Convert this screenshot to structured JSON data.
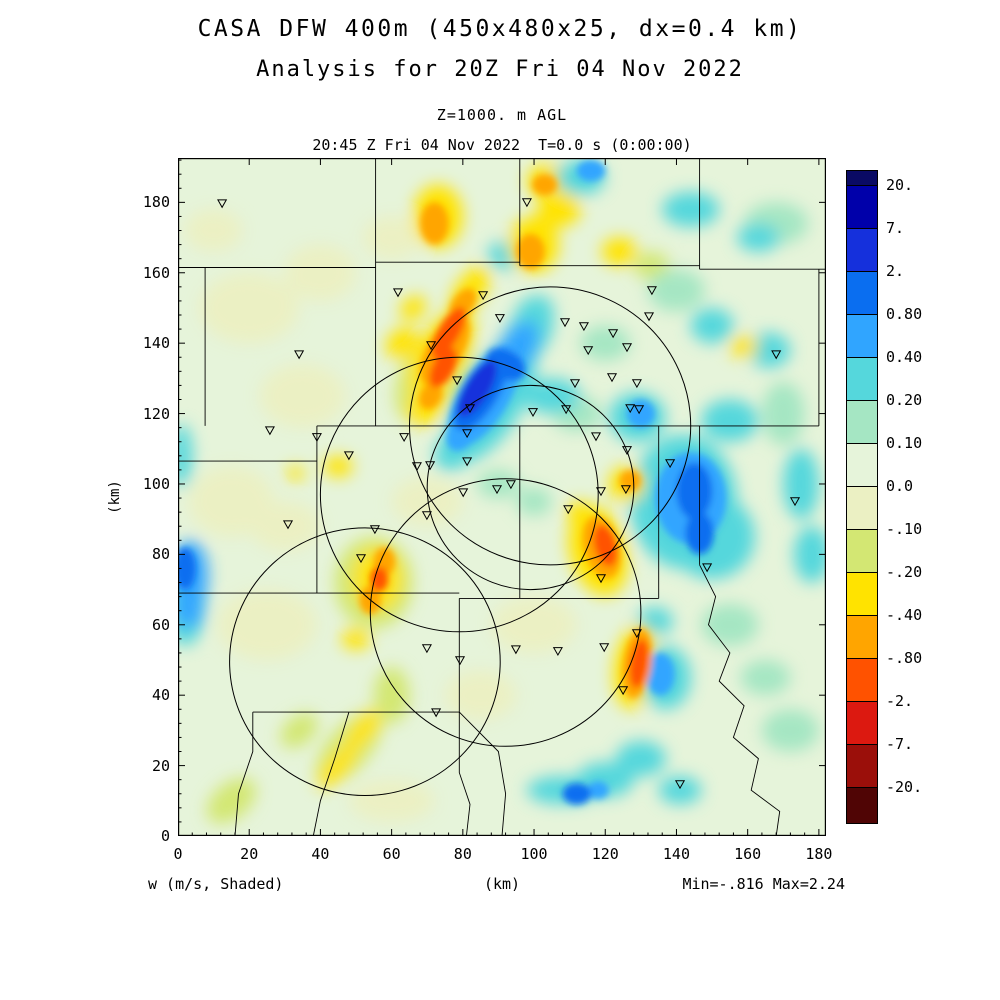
{
  "header": {
    "title": "CASA DFW 400m (450x480x25, dx=0.4 km)",
    "subtitle": "Analysis for 20Z Fri 04 Nov 2022",
    "level_label": "Z=1000. m AGL",
    "time_label": "20:45 Z Fri 04 Nov 2022  T=0.0 s (0:00:00)"
  },
  "footer": {
    "field_label": "w (m/s, Shaded)",
    "axis_unit_label": "(km)",
    "range_label": "Min=-.816 Max=2.24"
  },
  "axes": {
    "x_label": "(km)",
    "y_label": "(km)",
    "x_ticks": [
      0,
      20,
      40,
      60,
      80,
      100,
      120,
      140,
      160,
      180
    ],
    "y_ticks": [
      0,
      20,
      40,
      60,
      80,
      100,
      120,
      140,
      160,
      180
    ],
    "x_max": 182,
    "y_max": 192.6
  },
  "colorbar": {
    "labels": [
      "20.",
      "7.",
      "2.",
      "0.80",
      "0.40",
      "0.20",
      "0.10",
      "0.0",
      "-.10",
      "-.20",
      "-.40",
      "-.80",
      "-2.",
      "-7.",
      "-20."
    ],
    "thresholds": [
      20,
      7,
      2,
      0.8,
      0.4,
      0.2,
      0.1,
      0,
      -0.1,
      -0.2,
      -0.4,
      -0.8,
      -2,
      -7,
      -20
    ],
    "colors": [
      "#0A0A64",
      "#0000AA",
      "#1530DC",
      "#0A6EF0",
      "#30A5FF",
      "#55D7DC",
      "#A5E6C3",
      "#E6F4DA",
      "#EBF0C3",
      "#D3E773",
      "#FFE300",
      "#FFA500",
      "#FF5200",
      "#DC1910",
      "#9B0F0A",
      "#500505"
    ]
  },
  "chart_data": {
    "type": "heatmap",
    "field": "w",
    "units": "m/s",
    "shading": "vertical velocity, shaded by colorbar levels",
    "min": -0.816,
    "max": 2.24,
    "blobs": [
      [
        84,
        127,
        9,
        3.5,
        -59,
        2.2
      ],
      [
        92,
        134,
        4,
        6,
        -59,
        1.0
      ],
      [
        85,
        126,
        12,
        5,
        -59,
        1.0
      ],
      [
        86,
        125,
        16,
        7,
        -59,
        0.5
      ],
      [
        88,
        124,
        20,
        9,
        -59,
        0.3
      ],
      [
        95,
        138,
        9,
        5,
        -59,
        0.4
      ],
      [
        98,
        142,
        10,
        6,
        -55,
        0.2
      ],
      [
        80,
        115,
        6,
        4,
        -59,
        0.5
      ],
      [
        78,
        110,
        7,
        5,
        -50,
        0.25
      ],
      [
        100,
        148,
        6,
        5,
        -45,
        0.2
      ],
      [
        76,
        143,
        8,
        3,
        -60,
        -0.9
      ],
      [
        74.5,
        133,
        6,
        3,
        -62,
        -0.9
      ],
      [
        75,
        138,
        11,
        5,
        -60,
        -0.6
      ],
      [
        74,
        137,
        14,
        7,
        -60,
        -0.3
      ],
      [
        80,
        151,
        5,
        3,
        -55,
        -0.6
      ],
      [
        82,
        155,
        8,
        4,
        -55,
        -0.3
      ],
      [
        71,
        125,
        4,
        3,
        -60,
        -0.6
      ],
      [
        70,
        123,
        7,
        5,
        -55,
        -0.3
      ],
      [
        72,
        132,
        16,
        9,
        -60,
        -0.15
      ],
      [
        63,
        140,
        5,
        4,
        -40,
        -0.3
      ],
      [
        66,
        150,
        4,
        3,
        -40,
        -0.3
      ],
      [
        72,
        174,
        4,
        6,
        0,
        -0.6
      ],
      [
        73,
        176,
        7,
        9,
        0,
        -0.3
      ],
      [
        99,
        166,
        4,
        5,
        0,
        -0.6
      ],
      [
        100,
        168,
        7,
        8,
        0,
        -0.3
      ],
      [
        107,
        178,
        6,
        5,
        0,
        -0.3
      ],
      [
        103,
        185,
        3.5,
        3,
        0,
        -0.6
      ],
      [
        104,
        186,
        6,
        5,
        0,
        -0.3
      ],
      [
        116,
        189,
        4,
        3,
        0,
        0.5
      ],
      [
        113,
        187,
        7,
        5,
        0,
        0.3
      ],
      [
        92,
        165,
        5,
        4,
        0,
        0.2
      ],
      [
        124,
        166,
        5,
        4,
        0,
        -0.3
      ],
      [
        133,
        162,
        5,
        4,
        0,
        -0.15
      ],
      [
        144,
        178,
        8,
        5,
        0,
        0.3
      ],
      [
        163,
        170,
        6,
        4,
        0,
        0.3
      ],
      [
        168,
        174,
        9,
        6,
        0,
        0.15
      ],
      [
        145,
        98,
        5,
        8,
        0,
        1.0
      ],
      [
        146.5,
        86,
        4,
        6,
        0,
        1.0
      ],
      [
        144,
        96,
        10,
        13,
        0,
        0.5
      ],
      [
        142,
        95,
        15,
        19,
        0,
        0.3
      ],
      [
        150,
        85,
        12,
        12,
        0,
        0.2
      ],
      [
        130,
        120,
        4,
        4,
        0,
        0.5
      ],
      [
        129,
        119,
        8,
        7,
        0,
        0.3
      ],
      [
        155,
        118,
        8,
        6,
        0,
        0.2
      ],
      [
        166,
        138,
        6,
        5,
        0,
        0.3
      ],
      [
        159,
        139,
        4,
        3,
        0,
        -0.3
      ],
      [
        170,
        120,
        6,
        9,
        0,
        0.15
      ],
      [
        175,
        100,
        5,
        10,
        0,
        0.2
      ],
      [
        137,
        106,
        6,
        5,
        0,
        0.25
      ],
      [
        120,
        82.5,
        3,
        6,
        -15,
        -0.9
      ],
      [
        119,
        82,
        5,
        9,
        -15,
        -0.6
      ],
      [
        118,
        81,
        8,
        13,
        -15,
        -0.3
      ],
      [
        127,
        101,
        3,
        3,
        0,
        -0.6
      ],
      [
        126,
        100,
        5,
        5,
        0,
        -0.3
      ],
      [
        113,
        92,
        4,
        3,
        0,
        -0.3
      ],
      [
        129.5,
        49,
        2.5,
        7,
        8,
        -0.9
      ],
      [
        129,
        49,
        4,
        10,
        8,
        -0.6
      ],
      [
        128.5,
        48,
        6,
        12,
        8,
        -0.3
      ],
      [
        135.5,
        46,
        4,
        6,
        0,
        0.5
      ],
      [
        137,
        45,
        7,
        9,
        0,
        0.3
      ],
      [
        134,
        61,
        5,
        4,
        0,
        0.2
      ],
      [
        2,
        76,
        3,
        6,
        0,
        0.8
      ],
      [
        3.5,
        74,
        5,
        10,
        0,
        0.4
      ],
      [
        3,
        64,
        4,
        5,
        0,
        0.4
      ],
      [
        2,
        68,
        6,
        14,
        0,
        0.2
      ],
      [
        1,
        108,
        3,
        9,
        0,
        0.2
      ],
      [
        45,
        20,
        8,
        3,
        -50,
        -0.3
      ],
      [
        52,
        30,
        7,
        3,
        -50,
        -0.3
      ],
      [
        48,
        25,
        13,
        6,
        -50,
        -0.15
      ],
      [
        50,
        56,
        4,
        3,
        0,
        -0.3
      ],
      [
        54,
        67,
        3,
        4,
        0,
        -0.6
      ],
      [
        56.5,
        73,
        2.5,
        3.5,
        0,
        -0.9
      ],
      [
        58,
        78,
        3,
        4,
        0,
        -0.6
      ],
      [
        56,
        73,
        7,
        9,
        0,
        -0.3
      ],
      [
        55,
        72,
        11,
        13,
        0,
        -0.15
      ],
      [
        34,
        30,
        6,
        4,
        -40,
        -0.15
      ],
      [
        15,
        10,
        8,
        5,
        -40,
        -0.15
      ],
      [
        60,
        40,
        5,
        8,
        0,
        -0.15
      ],
      [
        108,
        13,
        10,
        4,
        0,
        0.3
      ],
      [
        112,
        12,
        4,
        3,
        0,
        0.8
      ],
      [
        118,
        13,
        3,
        2.5,
        0,
        0.5
      ],
      [
        120,
        16,
        8,
        5,
        0,
        0.2
      ],
      [
        130,
        22,
        7,
        5,
        0,
        0.2
      ],
      [
        141,
        13,
        6,
        4,
        0,
        0.2
      ],
      [
        20,
        150,
        14,
        10,
        0,
        -0.05
      ],
      [
        40,
        160,
        10,
        8,
        0,
        -0.05
      ],
      [
        60,
        170,
        8,
        6,
        0,
        -0.05
      ],
      [
        35,
        125,
        12,
        9,
        0,
        -0.05
      ],
      [
        15,
        95,
        12,
        10,
        0,
        -0.05
      ],
      [
        30,
        88,
        10,
        7,
        0,
        -0.05
      ],
      [
        25,
        60,
        14,
        10,
        0,
        -0.05
      ],
      [
        70,
        95,
        10,
        7,
        0,
        -0.05
      ],
      [
        100,
        60,
        12,
        8,
        0,
        -0.05
      ],
      [
        85,
        40,
        10,
        7,
        0,
        -0.05
      ],
      [
        60,
        10,
        12,
        6,
        0,
        -0.05
      ],
      [
        10,
        172,
        8,
        6,
        0,
        -0.05
      ],
      [
        105,
        125,
        8,
        5,
        0,
        0.2
      ],
      [
        112,
        120,
        7,
        5,
        0,
        0.15
      ],
      [
        90,
        100,
        6,
        4,
        0,
        0.15
      ],
      [
        100,
        95,
        5,
        4,
        0,
        0.15
      ],
      [
        120,
        140,
        7,
        5,
        0,
        0.15
      ],
      [
        140,
        155,
        8,
        6,
        0,
        0.15
      ],
      [
        150,
        145,
        6,
        5,
        0,
        0.2
      ],
      [
        155,
        60,
        8,
        6,
        0,
        0.15
      ],
      [
        165,
        45,
        7,
        5,
        0,
        0.15
      ],
      [
        172,
        30,
        8,
        6,
        0,
        0.15
      ],
      [
        178,
        80,
        5,
        8,
        0,
        0.2
      ],
      [
        45,
        105,
        4,
        3,
        0,
        -0.3
      ],
      [
        33,
        103,
        2.5,
        2,
        0,
        -0.3
      ]
    ],
    "county_lines": [
      [
        [
          0,
          161.5
        ],
        [
          55.5,
          161.5
        ]
      ],
      [
        [
          55.5,
          192.6
        ],
        [
          55.5,
          116.5
        ]
      ],
      [
        [
          55.5,
          163
        ],
        [
          96,
          163
        ]
      ],
      [
        [
          96,
          192.6
        ],
        [
          96,
          162
        ]
      ],
      [
        [
          96,
          162
        ],
        [
          146.5,
          162
        ]
      ],
      [
        [
          146.5,
          192.6
        ],
        [
          146.5,
          161
        ]
      ],
      [
        [
          146.5,
          161
        ],
        [
          182,
          161
        ]
      ],
      [
        [
          180,
          161
        ],
        [
          180,
          116.5
        ]
      ],
      [
        [
          7.6,
          161.5
        ],
        [
          7.6,
          116.5
        ]
      ],
      [
        [
          0,
          106.5
        ],
        [
          39,
          106.5
        ]
      ],
      [
        [
          39,
          116.5
        ],
        [
          39,
          69
        ]
      ],
      [
        [
          39,
          116.5
        ],
        [
          180,
          116.5
        ]
      ],
      [
        [
          96,
          116.5
        ],
        [
          96,
          67.5
        ]
      ],
      [
        [
          0,
          69
        ],
        [
          79,
          69
        ]
      ],
      [
        [
          79,
          67.5
        ],
        [
          135,
          67.5
        ]
      ],
      [
        [
          135,
          116.5
        ],
        [
          135,
          67.5
        ]
      ],
      [
        [
          146.5,
          116.5
        ],
        [
          146.5,
          77
        ]
      ],
      [
        [
          146.5,
          77
        ],
        [
          151,
          68
        ],
        [
          149,
          60
        ],
        [
          155,
          52
        ],
        [
          152,
          44
        ],
        [
          159,
          37
        ],
        [
          156,
          28
        ],
        [
          163,
          22
        ],
        [
          161,
          13
        ],
        [
          169,
          7
        ],
        [
          168,
          0
        ]
      ],
      [
        [
          21,
          35.2
        ],
        [
          79,
          35.2
        ]
      ],
      [
        [
          79,
          67.5
        ],
        [
          79,
          35.2
        ]
      ],
      [
        [
          79,
          35.2
        ],
        [
          79,
          18
        ],
        [
          82,
          9
        ],
        [
          81,
          0
        ]
      ],
      [
        [
          79,
          35.2
        ],
        [
          90,
          24
        ],
        [
          92,
          12
        ],
        [
          91,
          0
        ]
      ],
      [
        [
          48,
          35.2
        ],
        [
          44,
          22
        ],
        [
          40,
          10
        ],
        [
          38,
          0
        ]
      ],
      [
        [
          21,
          35.2
        ],
        [
          21,
          24
        ],
        [
          17,
          12
        ],
        [
          16,
          0
        ]
      ]
    ],
    "radar_circles": [
      {
        "x": 104.5,
        "y": 116.5,
        "r": 39.5
      },
      {
        "x": 79,
        "y": 97,
        "r": 39
      },
      {
        "x": 99,
        "y": 99,
        "r": 29
      },
      {
        "x": 52.5,
        "y": 49.5,
        "r": 38
      },
      {
        "x": 92,
        "y": 63.5,
        "r": 38
      }
    ],
    "stations": [
      [
        12.4,
        179.8
      ],
      [
        98,
        180.1
      ],
      [
        34,
        136.9
      ],
      [
        61.8,
        154.5
      ],
      [
        85.7,
        153.7
      ],
      [
        90.4,
        147.2
      ],
      [
        133.1,
        155.1
      ],
      [
        71.1,
        139.5
      ],
      [
        108.7,
        146
      ],
      [
        114,
        144.9
      ],
      [
        122.2,
        142.9
      ],
      [
        132.3,
        147.7
      ],
      [
        115.2,
        138.1
      ],
      [
        126.1,
        138.9
      ],
      [
        168,
        136.9
      ],
      [
        78.4,
        129.5
      ],
      [
        111.5,
        128.7
      ],
      [
        121.9,
        130.4
      ],
      [
        128.9,
        128.7
      ],
      [
        82,
        121.6
      ],
      [
        99.7,
        120.5
      ],
      [
        109,
        121.3
      ],
      [
        127,
        121.6
      ],
      [
        129.5,
        121.3
      ],
      [
        25.8,
        115.3
      ],
      [
        39,
        113.4
      ],
      [
        63.5,
        113.4
      ],
      [
        81.2,
        114.5
      ],
      [
        117.4,
        113.6
      ],
      [
        48,
        108.2
      ],
      [
        67.1,
        105.1
      ],
      [
        70.8,
        105.4
      ],
      [
        81.2,
        106.5
      ],
      [
        126.1,
        109.7
      ],
      [
        138.2,
        106
      ],
      [
        80.1,
        97.7
      ],
      [
        89.6,
        98.6
      ],
      [
        93.5,
        100
      ],
      [
        118.8,
        98
      ],
      [
        125.8,
        98.6
      ],
      [
        173.3,
        95.2
      ],
      [
        30.9,
        88.6
      ],
      [
        55.3,
        87.2
      ],
      [
        69.9,
        91.2
      ],
      [
        109.6,
        92.9
      ],
      [
        51.4,
        79
      ],
      [
        118.8,
        73.3
      ],
      [
        148.6,
        76.4
      ],
      [
        69.9,
        53.4
      ],
      [
        79.2,
        50
      ],
      [
        94.9,
        53.1
      ],
      [
        106.7,
        52.6
      ],
      [
        119.7,
        53.7
      ],
      [
        128.9,
        57.7
      ],
      [
        125,
        41.5
      ],
      [
        72.5,
        35.2
      ],
      [
        141,
        14.8
      ]
    ]
  }
}
